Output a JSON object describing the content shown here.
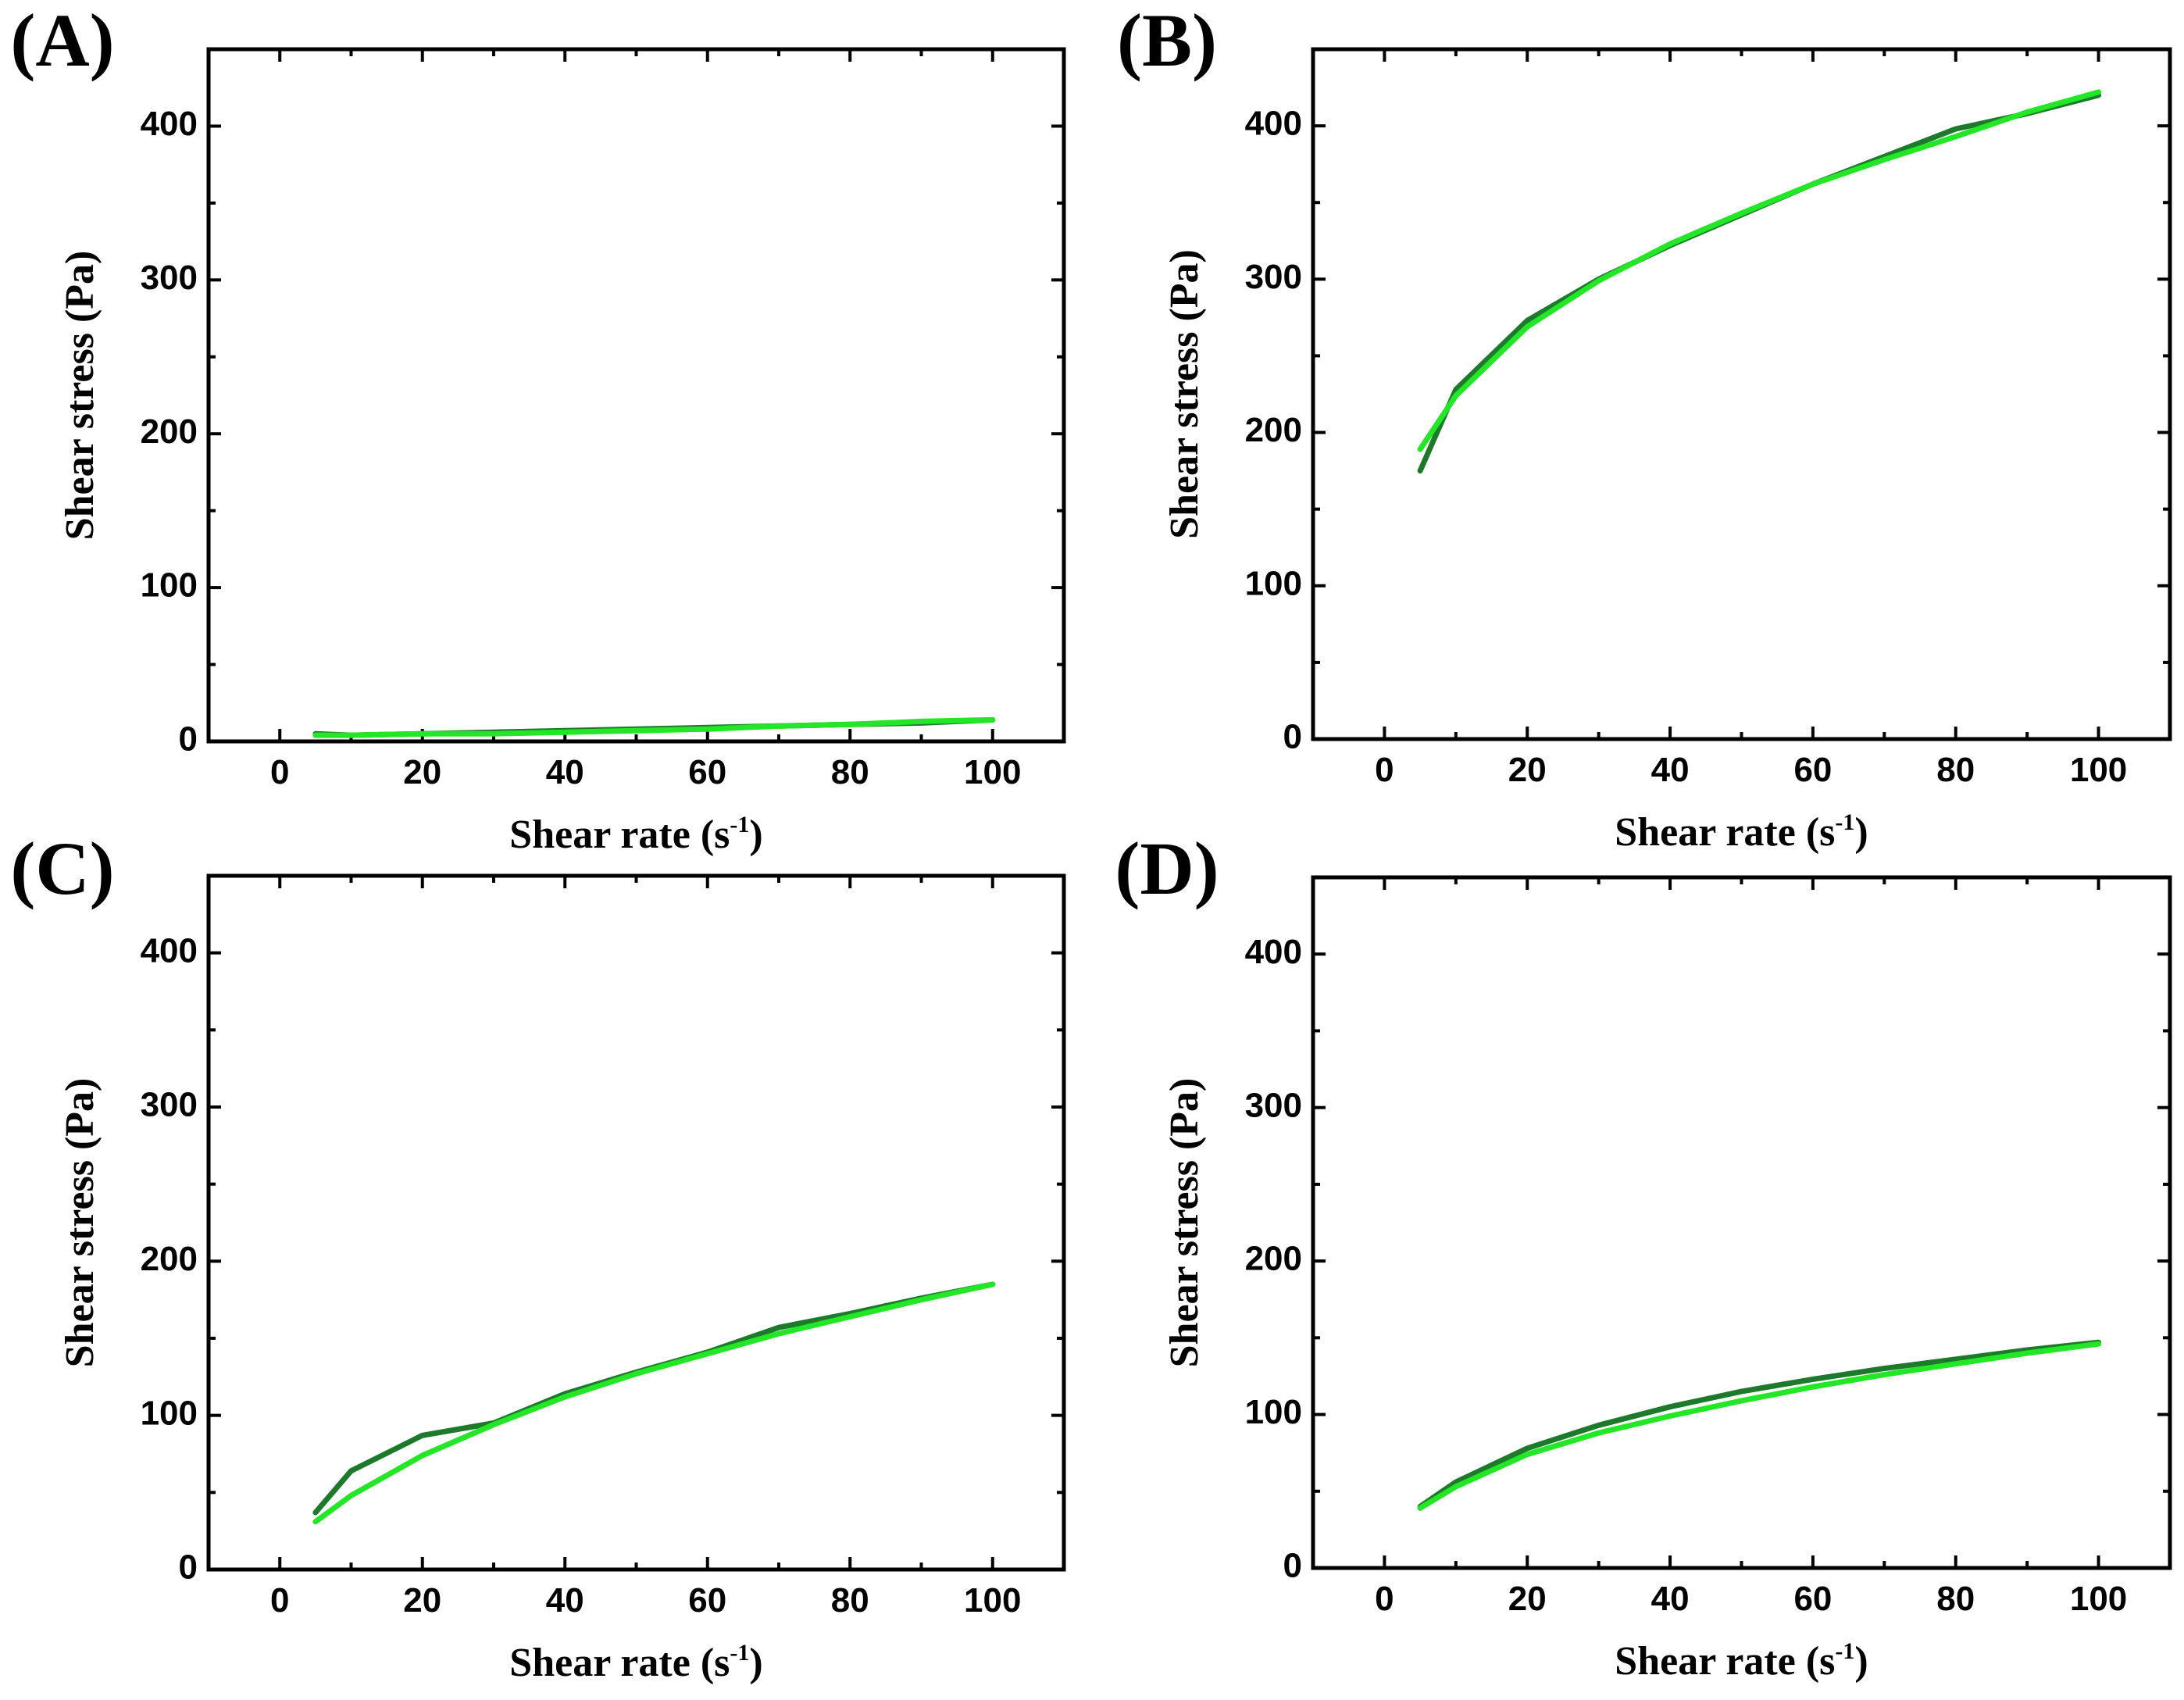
{
  "colors": {
    "dark_green": "#1c7a2a",
    "light_green": "#22e626"
  },
  "chart_data": [
    {
      "type": "line",
      "panel_label": "(A)",
      "xlabel": "Shear rate (s",
      "xlabel_sup": "-1",
      "xlabel_close": ")",
      "ylabel": "Shear stress (Pa)",
      "xlim": [
        -10,
        110
      ],
      "ylim": [
        0,
        450
      ],
      "xticks": [
        0,
        20,
        40,
        60,
        80,
        100
      ],
      "yticks": [
        0,
        100,
        200,
        300,
        400
      ],
      "x": [
        5,
        10,
        20,
        30,
        40,
        50,
        60,
        70,
        80,
        90,
        100
      ],
      "series": [
        {
          "name": "dark",
          "color": "#1c7a2a",
          "values": [
            5,
            4,
            5,
            6,
            7,
            8,
            9,
            10,
            11,
            12,
            14
          ]
        },
        {
          "name": "light",
          "color": "#22e626",
          "values": [
            4,
            4,
            5,
            5,
            6,
            7,
            8,
            10,
            11,
            13,
            14
          ]
        }
      ]
    },
    {
      "type": "line",
      "panel_label": "(B)",
      "xlabel": "Shear rate (s",
      "xlabel_sup": "-1",
      "xlabel_close": ")",
      "ylabel": "Shear stress (Pa)",
      "xlim": [
        -10,
        110
      ],
      "ylim": [
        0,
        450
      ],
      "xticks": [
        0,
        20,
        40,
        60,
        80,
        100
      ],
      "yticks": [
        0,
        100,
        200,
        300,
        400
      ],
      "x": [
        5,
        10,
        20,
        30,
        40,
        50,
        60,
        70,
        80,
        90,
        100
      ],
      "series": [
        {
          "name": "dark",
          "color": "#1c7a2a",
          "values": [
            175,
            228,
            273,
            300,
            322,
            342,
            362,
            380,
            398,
            408,
            420
          ]
        },
        {
          "name": "light",
          "color": "#22e626",
          "values": [
            189,
            224,
            269,
            299,
            323,
            343,
            362,
            378,
            393,
            409,
            422
          ]
        }
      ]
    },
    {
      "type": "line",
      "panel_label": "(C)",
      "xlabel": "Shear rate (s",
      "xlabel_sup": "-1",
      "xlabel_close": ")",
      "ylabel": "Shear stress (Pa)",
      "xlim": [
        -10,
        110
      ],
      "ylim": [
        0,
        450
      ],
      "xticks": [
        0,
        20,
        40,
        60,
        80,
        100
      ],
      "yticks": [
        0,
        100,
        200,
        300,
        400
      ],
      "x": [
        5,
        10,
        20,
        30,
        40,
        50,
        60,
        70,
        80,
        90,
        100
      ],
      "series": [
        {
          "name": "dark",
          "color": "#1c7a2a",
          "values": [
            37,
            64,
            87,
            95,
            114,
            128,
            141,
            157,
            166,
            176,
            185
          ]
        },
        {
          "name": "light",
          "color": "#22e626",
          "values": [
            31,
            48,
            74,
            94,
            112,
            127,
            140,
            153,
            164,
            175,
            185
          ]
        }
      ]
    },
    {
      "type": "line",
      "panel_label": "(D)",
      "xlabel": "Shear rate (s",
      "xlabel_sup": "-1",
      "xlabel_close": ")",
      "ylabel": "Shear stress (Pa)",
      "xlim": [
        -10,
        110
      ],
      "ylim": [
        0,
        450
      ],
      "xticks": [
        0,
        20,
        40,
        60,
        80,
        100
      ],
      "yticks": [
        0,
        100,
        200,
        300,
        400
      ],
      "x": [
        5,
        10,
        20,
        30,
        40,
        50,
        60,
        70,
        80,
        90,
        100
      ],
      "series": [
        {
          "name": "dark",
          "color": "#1c7a2a",
          "values": [
            40,
            56,
            78,
            93,
            105,
            115,
            123,
            130,
            136,
            142,
            147
          ]
        },
        {
          "name": "light",
          "color": "#22e626",
          "values": [
            39,
            53,
            74,
            88,
            99,
            109,
            118,
            126,
            133,
            140,
            146
          ]
        }
      ]
    }
  ]
}
